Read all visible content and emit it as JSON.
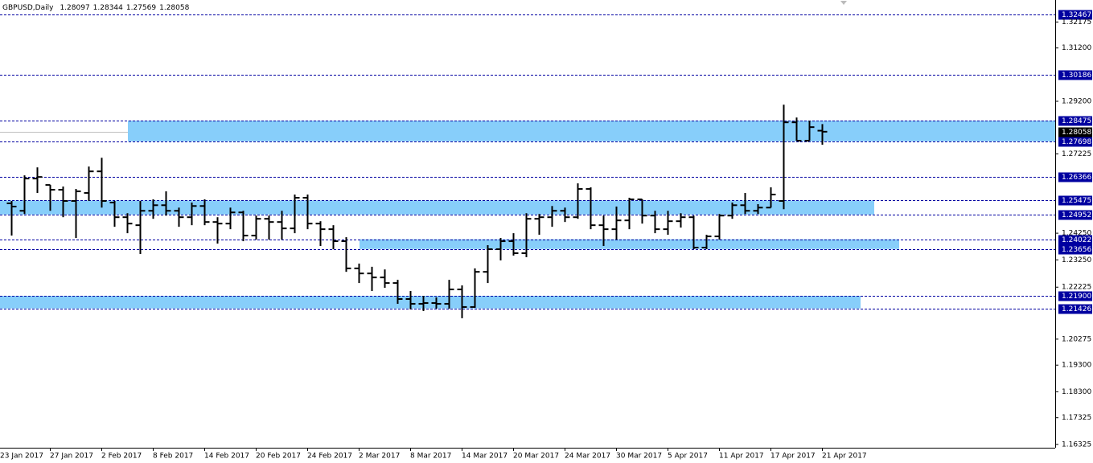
{
  "chart_data": {
    "type": "ohlc",
    "symbol": "GBPUSD,Daily",
    "categories": [
      "23 Jan 2017",
      null,
      null,
      null,
      "27 Jan 2017",
      null,
      null,
      null,
      "2 Feb 2017",
      null,
      null,
      null,
      "8 Feb 2017",
      null,
      null,
      null,
      "14 Feb 2017",
      null,
      null,
      null,
      "20 Feb 2017",
      null,
      null,
      null,
      "24 Feb 2017",
      null,
      null,
      null,
      "2 Mar 2017",
      null,
      null,
      null,
      "8 Mar 2017",
      null,
      null,
      null,
      "14 Mar 2017",
      null,
      null,
      null,
      "20 Mar 2017",
      null,
      null,
      null,
      "24 Mar 2017",
      null,
      null,
      null,
      "30 Mar 2017",
      null,
      null,
      null,
      "5 Apr 2017",
      null,
      null,
      null,
      "11 Apr 2017",
      null,
      null,
      null,
      "17 Apr 2017",
      null,
      null,
      null,
      "21 Apr 2017"
    ],
    "open": [
      null,
      1.2537,
      1.2509,
      1.263,
      1.2606,
      1.2588,
      1.2546,
      1.2576,
      1.2657,
      1.254,
      1.2485,
      1.2455,
      1.2509,
      1.253,
      1.2509,
      1.2485,
      1.2527,
      1.2467,
      1.2461,
      1.2503,
      1.2416,
      1.2479,
      1.2467,
      1.2443,
      1.2558,
      1.2461,
      1.244,
      1.2395,
      1.2293,
      1.2274,
      1.2259,
      1.2238,
      1.2178,
      1.216,
      1.2163,
      1.216,
      1.2214,
      1.2148,
      1.228,
      1.2365,
      1.2395,
      1.235,
      1.2479,
      1.2485,
      1.2509,
      1.2485,
      1.2591,
      1.2455,
      1.244,
      1.2473,
      1.2552,
      1.2491,
      1.244,
      1.247,
      1.2485,
      1.2371,
      1.2413,
      1.2491,
      1.253,
      1.2509,
      1.2521,
      1.2546,
      1.2841,
      1.2772,
      1.28097
    ],
    "high": [
      null,
      1.2546,
      1.2642,
      1.2672,
      1.2606,
      1.26,
      1.2591,
      1.2675,
      1.2708,
      1.2546,
      1.25,
      1.2546,
      1.2552,
      1.2582,
      1.2521,
      1.254,
      1.2552,
      1.2485,
      1.2521,
      1.2509,
      1.2491,
      1.2491,
      1.2509,
      1.257,
      1.257,
      1.247,
      1.2455,
      1.241,
      1.2311,
      1.2299,
      1.2289,
      1.225,
      1.2208,
      1.219,
      1.2184,
      1.225,
      1.2229,
      1.2293,
      1.238,
      1.2407,
      1.2425,
      1.25,
      1.2497,
      1.2527,
      1.2521,
      1.2612,
      1.2597,
      1.2491,
      1.2525,
      1.2558,
      1.2552,
      1.2509,
      1.2509,
      1.25,
      1.2491,
      1.2419,
      1.2497,
      1.254,
      1.2576,
      1.2534,
      1.2597,
      1.2907,
      1.2859,
      1.2847,
      1.28344
    ],
    "low": [
      null,
      1.2416,
      1.2497,
      1.2576,
      1.2509,
      1.2485,
      1.2407,
      1.2546,
      1.2521,
      1.2449,
      1.2425,
      1.2347,
      1.2479,
      1.2491,
      1.2449,
      1.2455,
      1.2455,
      1.2386,
      1.244,
      1.2395,
      1.2401,
      1.2401,
      1.2401,
      1.2425,
      1.244,
      1.2377,
      1.2365,
      1.228,
      1.2238,
      1.2208,
      1.222,
      1.216,
      1.2139,
      1.2133,
      1.2142,
      1.2142,
      1.2106,
      1.2145,
      1.2238,
      1.2323,
      1.2341,
      1.2335,
      1.2419,
      1.2449,
      1.2467,
      1.2479,
      1.244,
      1.2377,
      1.2401,
      1.244,
      1.2461,
      1.2425,
      1.2419,
      1.2446,
      1.2365,
      1.2365,
      1.2401,
      1.2479,
      1.2497,
      1.2497,
      1.2521,
      1.2515,
      1.2772,
      1.2772,
      1.27569
    ],
    "close": [
      null,
      1.2525,
      1.263,
      1.2636,
      1.2588,
      1.2546,
      1.2582,
      1.2657,
      1.2546,
      1.2485,
      1.2461,
      1.2509,
      1.253,
      1.2509,
      1.2485,
      1.2527,
      1.2467,
      1.2461,
      1.2503,
      1.2416,
      1.2479,
      1.2467,
      1.2443,
      1.2558,
      1.2461,
      1.244,
      1.2395,
      1.2293,
      1.2274,
      1.2259,
      1.2238,
      1.2178,
      1.216,
      1.2163,
      1.216,
      1.2214,
      1.2148,
      1.228,
      1.2365,
      1.2395,
      1.235,
      1.2479,
      1.2485,
      1.2509,
      1.2485,
      1.2591,
      1.2455,
      1.244,
      1.2473,
      1.2552,
      1.2491,
      1.244,
      1.247,
      1.2485,
      1.2371,
      1.2413,
      1.2491,
      1.253,
      1.2509,
      1.2521,
      1.257,
      1.2841,
      1.2772,
      1.2823,
      1.28058
    ],
    "color": "#000000",
    "ylim": [
      1.162,
      1.33
    ],
    "yticks": [
      1.32175,
      {
        "value": 1.312,
        "label": "1.31200"
      },
      {
        "value": 1.292,
        "label": "1.29200"
      },
      1.27225,
      {
        "value": 1.2425,
        "label": "1.24250"
      },
      {
        "value": 1.2325,
        "label": "1.23250"
      },
      1.22225,
      1.20275,
      {
        "value": 1.193,
        "label": "1.19300"
      },
      {
        "value": 1.183,
        "label": "1.18300"
      },
      1.17325,
      1.16325
    ],
    "levels": [
      1.32467,
      1.30186,
      1.28475,
      1.27698,
      1.26366,
      1.25475,
      1.24952,
      1.24022,
      1.23656,
      {
        "value": 1.219,
        "label": "1.21900"
      },
      1.21426
    ],
    "level_color": "#0000a0",
    "zone_color": "#87cefa"
  }
}
